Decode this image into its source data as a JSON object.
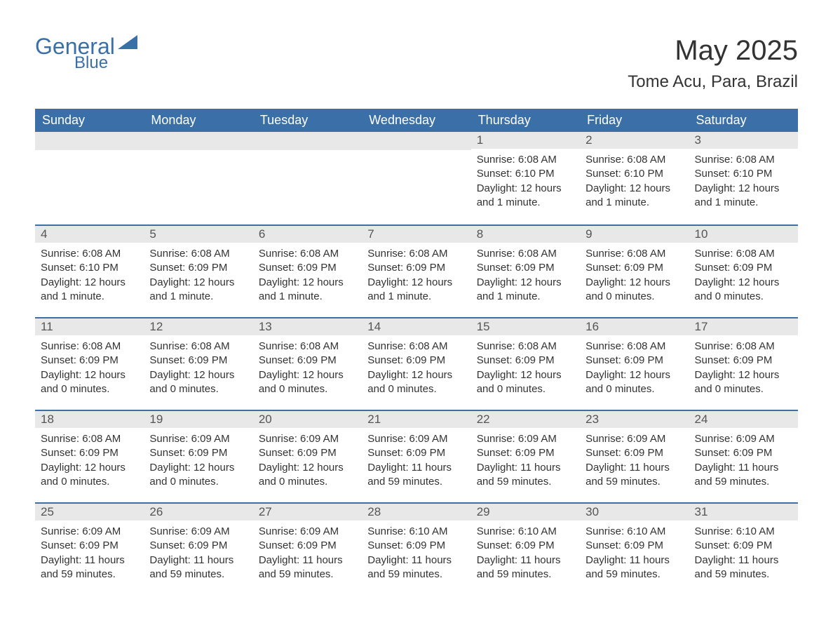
{
  "brand": {
    "text_main": "General",
    "text_sub": "Blue",
    "color": "#3a6fa8"
  },
  "header": {
    "month_title": "May 2025",
    "location": "Tome Acu, Para, Brazil"
  },
  "days_of_week": [
    "Sunday",
    "Monday",
    "Tuesday",
    "Wednesday",
    "Thursday",
    "Friday",
    "Saturday"
  ],
  "colors": {
    "header_bg": "#3a6fa8",
    "header_text": "#ffffff",
    "daybar_bg": "#e8e8e8",
    "daybar_border": "#3a6fa8",
    "body_text": "#333333",
    "background": "#ffffff"
  },
  "weeks": [
    [
      null,
      null,
      null,
      null,
      {
        "num": "1",
        "sunrise": "Sunrise: 6:08 AM",
        "sunset": "Sunset: 6:10 PM",
        "daylight": "Daylight: 12 hours and 1 minute."
      },
      {
        "num": "2",
        "sunrise": "Sunrise: 6:08 AM",
        "sunset": "Sunset: 6:10 PM",
        "daylight": "Daylight: 12 hours and 1 minute."
      },
      {
        "num": "3",
        "sunrise": "Sunrise: 6:08 AM",
        "sunset": "Sunset: 6:10 PM",
        "daylight": "Daylight: 12 hours and 1 minute."
      }
    ],
    [
      {
        "num": "4",
        "sunrise": "Sunrise: 6:08 AM",
        "sunset": "Sunset: 6:10 PM",
        "daylight": "Daylight: 12 hours and 1 minute."
      },
      {
        "num": "5",
        "sunrise": "Sunrise: 6:08 AM",
        "sunset": "Sunset: 6:09 PM",
        "daylight": "Daylight: 12 hours and 1 minute."
      },
      {
        "num": "6",
        "sunrise": "Sunrise: 6:08 AM",
        "sunset": "Sunset: 6:09 PM",
        "daylight": "Daylight: 12 hours and 1 minute."
      },
      {
        "num": "7",
        "sunrise": "Sunrise: 6:08 AM",
        "sunset": "Sunset: 6:09 PM",
        "daylight": "Daylight: 12 hours and 1 minute."
      },
      {
        "num": "8",
        "sunrise": "Sunrise: 6:08 AM",
        "sunset": "Sunset: 6:09 PM",
        "daylight": "Daylight: 12 hours and 1 minute."
      },
      {
        "num": "9",
        "sunrise": "Sunrise: 6:08 AM",
        "sunset": "Sunset: 6:09 PM",
        "daylight": "Daylight: 12 hours and 0 minutes."
      },
      {
        "num": "10",
        "sunrise": "Sunrise: 6:08 AM",
        "sunset": "Sunset: 6:09 PM",
        "daylight": "Daylight: 12 hours and 0 minutes."
      }
    ],
    [
      {
        "num": "11",
        "sunrise": "Sunrise: 6:08 AM",
        "sunset": "Sunset: 6:09 PM",
        "daylight": "Daylight: 12 hours and 0 minutes."
      },
      {
        "num": "12",
        "sunrise": "Sunrise: 6:08 AM",
        "sunset": "Sunset: 6:09 PM",
        "daylight": "Daylight: 12 hours and 0 minutes."
      },
      {
        "num": "13",
        "sunrise": "Sunrise: 6:08 AM",
        "sunset": "Sunset: 6:09 PM",
        "daylight": "Daylight: 12 hours and 0 minutes."
      },
      {
        "num": "14",
        "sunrise": "Sunrise: 6:08 AM",
        "sunset": "Sunset: 6:09 PM",
        "daylight": "Daylight: 12 hours and 0 minutes."
      },
      {
        "num": "15",
        "sunrise": "Sunrise: 6:08 AM",
        "sunset": "Sunset: 6:09 PM",
        "daylight": "Daylight: 12 hours and 0 minutes."
      },
      {
        "num": "16",
        "sunrise": "Sunrise: 6:08 AM",
        "sunset": "Sunset: 6:09 PM",
        "daylight": "Daylight: 12 hours and 0 minutes."
      },
      {
        "num": "17",
        "sunrise": "Sunrise: 6:08 AM",
        "sunset": "Sunset: 6:09 PM",
        "daylight": "Daylight: 12 hours and 0 minutes."
      }
    ],
    [
      {
        "num": "18",
        "sunrise": "Sunrise: 6:08 AM",
        "sunset": "Sunset: 6:09 PM",
        "daylight": "Daylight: 12 hours and 0 minutes."
      },
      {
        "num": "19",
        "sunrise": "Sunrise: 6:09 AM",
        "sunset": "Sunset: 6:09 PM",
        "daylight": "Daylight: 12 hours and 0 minutes."
      },
      {
        "num": "20",
        "sunrise": "Sunrise: 6:09 AM",
        "sunset": "Sunset: 6:09 PM",
        "daylight": "Daylight: 12 hours and 0 minutes."
      },
      {
        "num": "21",
        "sunrise": "Sunrise: 6:09 AM",
        "sunset": "Sunset: 6:09 PM",
        "daylight": "Daylight: 11 hours and 59 minutes."
      },
      {
        "num": "22",
        "sunrise": "Sunrise: 6:09 AM",
        "sunset": "Sunset: 6:09 PM",
        "daylight": "Daylight: 11 hours and 59 minutes."
      },
      {
        "num": "23",
        "sunrise": "Sunrise: 6:09 AM",
        "sunset": "Sunset: 6:09 PM",
        "daylight": "Daylight: 11 hours and 59 minutes."
      },
      {
        "num": "24",
        "sunrise": "Sunrise: 6:09 AM",
        "sunset": "Sunset: 6:09 PM",
        "daylight": "Daylight: 11 hours and 59 minutes."
      }
    ],
    [
      {
        "num": "25",
        "sunrise": "Sunrise: 6:09 AM",
        "sunset": "Sunset: 6:09 PM",
        "daylight": "Daylight: 11 hours and 59 minutes."
      },
      {
        "num": "26",
        "sunrise": "Sunrise: 6:09 AM",
        "sunset": "Sunset: 6:09 PM",
        "daylight": "Daylight: 11 hours and 59 minutes."
      },
      {
        "num": "27",
        "sunrise": "Sunrise: 6:09 AM",
        "sunset": "Sunset: 6:09 PM",
        "daylight": "Daylight: 11 hours and 59 minutes."
      },
      {
        "num": "28",
        "sunrise": "Sunrise: 6:10 AM",
        "sunset": "Sunset: 6:09 PM",
        "daylight": "Daylight: 11 hours and 59 minutes."
      },
      {
        "num": "29",
        "sunrise": "Sunrise: 6:10 AM",
        "sunset": "Sunset: 6:09 PM",
        "daylight": "Daylight: 11 hours and 59 minutes."
      },
      {
        "num": "30",
        "sunrise": "Sunrise: 6:10 AM",
        "sunset": "Sunset: 6:09 PM",
        "daylight": "Daylight: 11 hours and 59 minutes."
      },
      {
        "num": "31",
        "sunrise": "Sunrise: 6:10 AM",
        "sunset": "Sunset: 6:09 PM",
        "daylight": "Daylight: 11 hours and 59 minutes."
      }
    ]
  ]
}
